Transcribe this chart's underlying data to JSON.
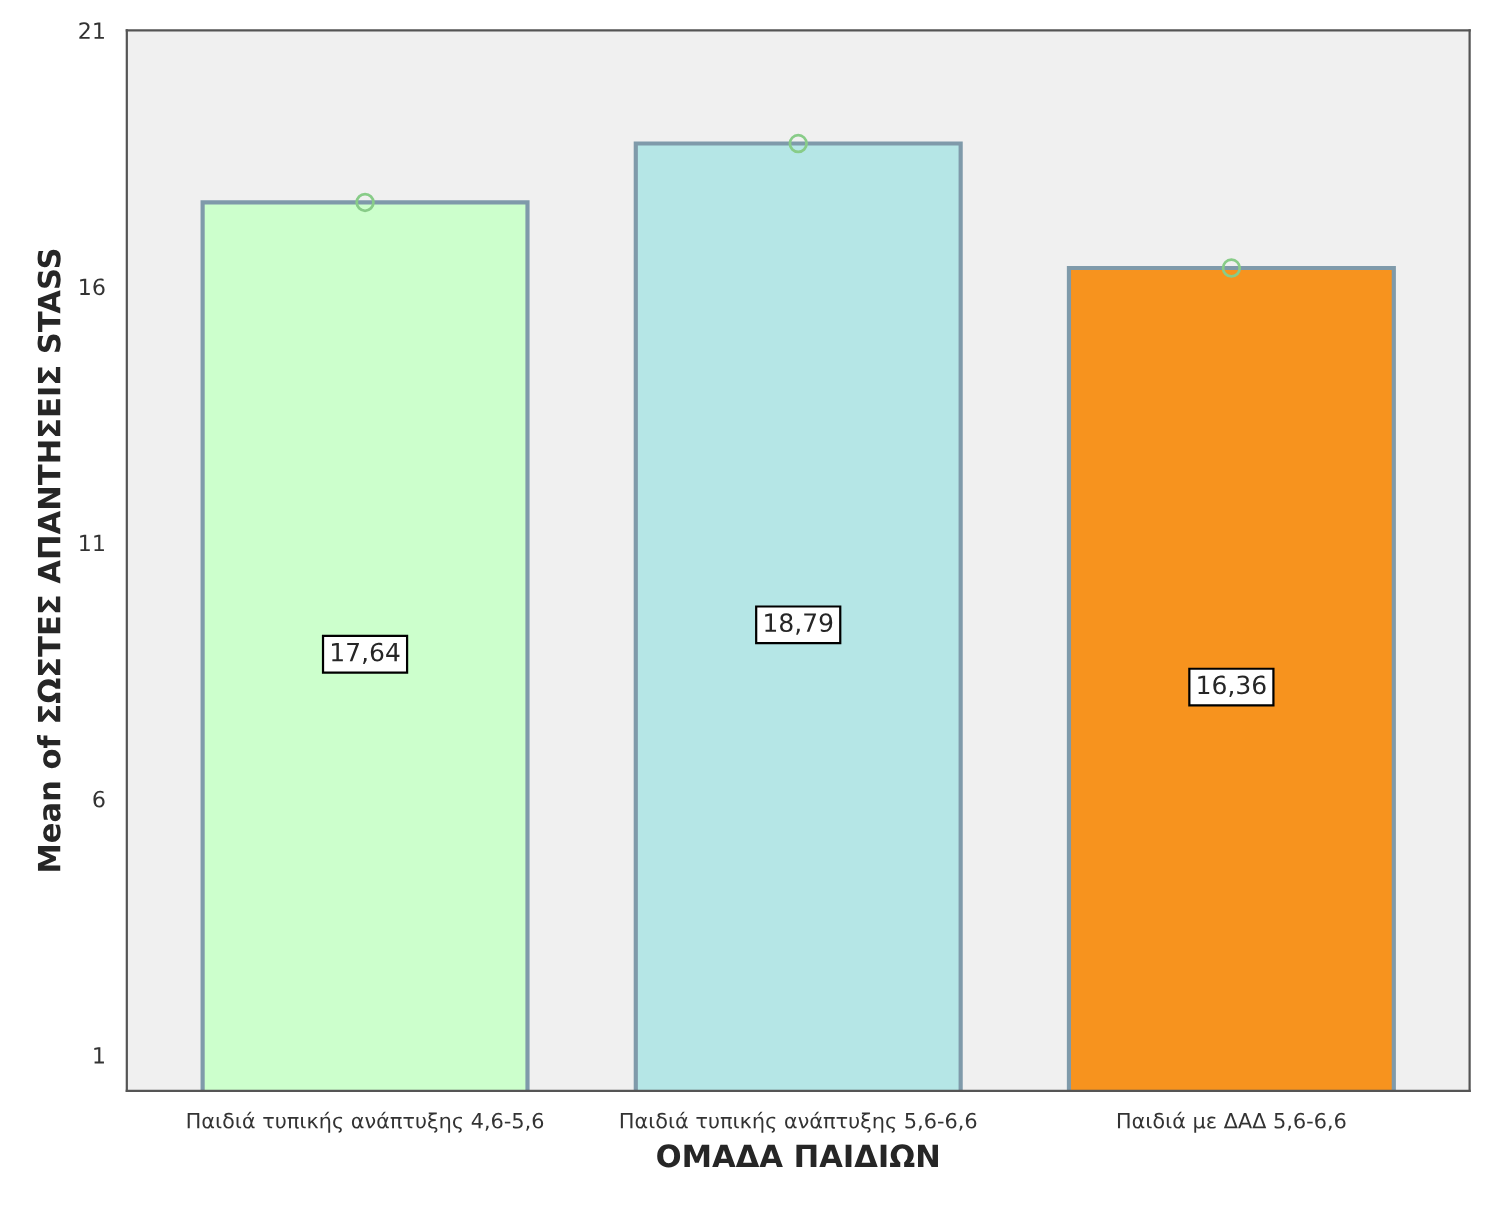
{
  "chart_data": {
    "type": "bar",
    "xlabel": "ΟΜΑΔΑ ΠΑΙΔΙΩΝ",
    "ylabel": "Mean of ΣΩΣΤΕΣ ΑΠΑΝΤΗΣΕΙΣ STASS",
    "categories": [
      "Παιδιά τυπικής ανάπτυξης 4,6-5,6",
      "Παιδιά τυπικής ανάπτυξης 5,6-6,6",
      "Παιδιά με ΔΑΔ 5,6-6,6"
    ],
    "series": [
      {
        "colors": [
          "#ccffcc",
          "#b5e6e6",
          "#f7931e"
        ],
        "values": [
          17.64,
          18.79,
          16.36
        ],
        "value_labels": [
          "17,64",
          "18,79",
          "16,36"
        ]
      },
      {
        "type": "scatter",
        "color": "#88cc88",
        "x": [
          "Παιδιά τυπικής ανάπτυξης 4,6-5,6",
          "Παιδιά τυπικής ανάπτυξης 5,6-6,6",
          "Παιδιά με ΔΑΔ 5,6-6,6"
        ],
        "values": [
          17.64,
          18.79,
          16.36
        ],
        "marker": "circle"
      }
    ],
    "ylim": [
      0.3,
      21
    ],
    "yticks": [
      1,
      6,
      11,
      16,
      21
    ],
    "grid": false,
    "legend": false
  }
}
